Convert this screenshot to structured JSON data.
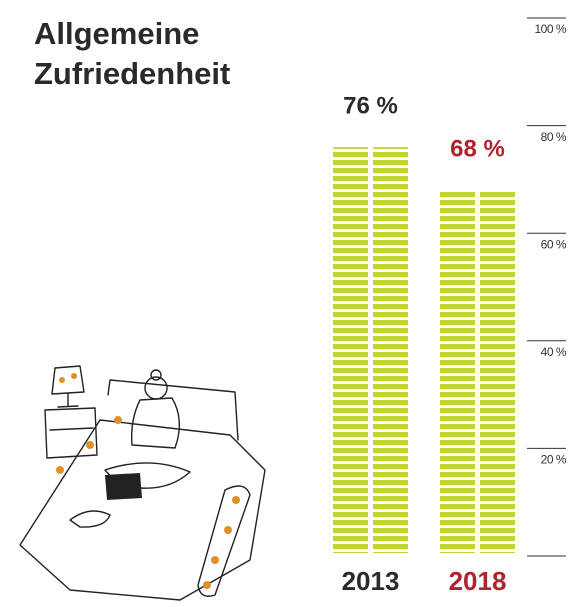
{
  "chart_data": {
    "type": "bar",
    "title": "Allgemeine Zufriedenheit",
    "categories": [
      "2013",
      "2018"
    ],
    "values": [
      76,
      68
    ],
    "value_labels": [
      "76 %",
      "68 %"
    ],
    "color": "#c3d62f",
    "label_colors": [
      "#2a2a2a",
      "#b3202f"
    ],
    "ylim": [
      0,
      100
    ],
    "yticks": [
      {
        "value": 20,
        "label": "20 %"
      },
      {
        "value": 40,
        "label": "40 %"
      },
      {
        "value": 60,
        "label": "60 %"
      },
      {
        "value": 80,
        "label": "80 %"
      },
      {
        "value": 100,
        "label": "100 %"
      }
    ]
  }
}
